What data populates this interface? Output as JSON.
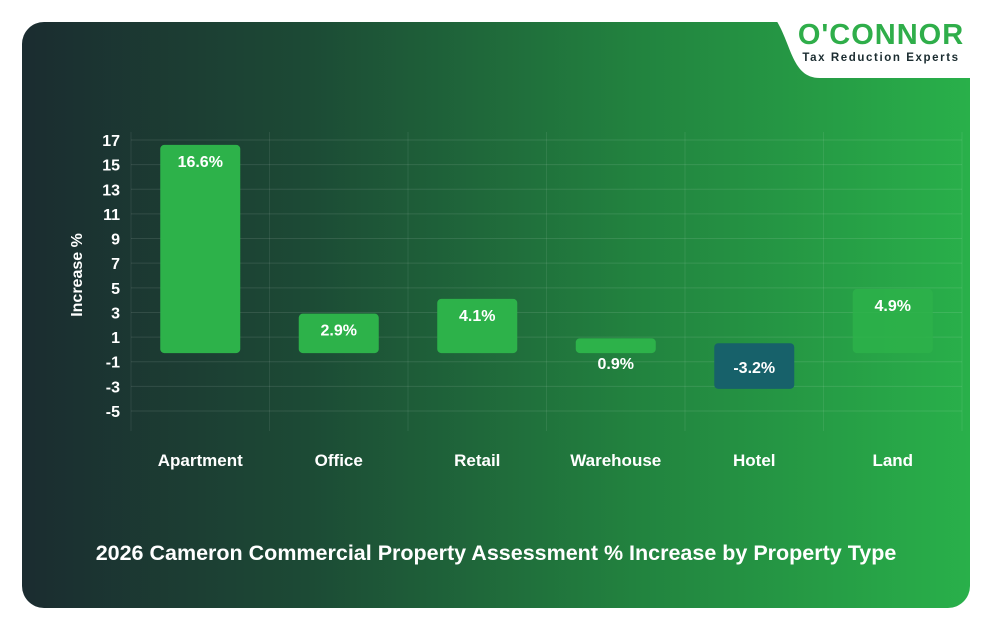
{
  "brand": {
    "name": "O'CONNOR",
    "tagline": "Tax Reduction Experts",
    "accent": "#2fae4a"
  },
  "chart_data": {
    "type": "bar",
    "title": "2026 Cameron Commercial Property Assessment % Increase by Property Type",
    "ylabel": "Increase %",
    "xlabel": "",
    "categories": [
      "Apartment",
      "Office",
      "Retail",
      "Warehouse",
      "Hotel",
      "Land"
    ],
    "values": [
      16.6,
      2.9,
      4.1,
      0.9,
      -3.2,
      4.9
    ],
    "data_labels": [
      "16.6%",
      "2.9%",
      "4.1%",
      "0.9%",
      "-3.2%",
      "4.9%"
    ],
    "yticks": [
      17,
      15,
      13,
      11,
      9,
      7,
      5,
      3,
      1,
      -1,
      -3,
      -5
    ],
    "ylim": [
      -5,
      17
    ],
    "grid": true,
    "legend": "none",
    "colors": {
      "positive": "#2db24a",
      "negative": "#17616a"
    }
  }
}
